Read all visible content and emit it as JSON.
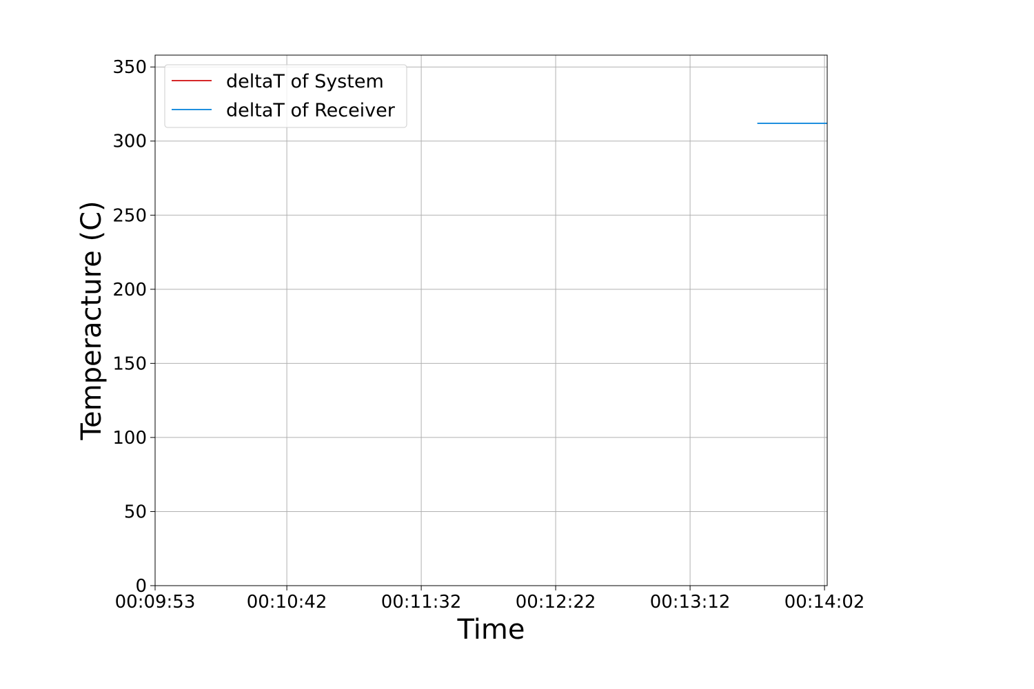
{
  "chart_data": {
    "type": "line",
    "title": "",
    "xlabel": "Time",
    "ylabel": "Temperacture (C)",
    "x_ticks": [
      "00:09:53",
      "00:10:42",
      "00:11:32",
      "00:12:22",
      "00:13:12",
      "00:14:02"
    ],
    "x_tick_seconds": [
      593,
      642,
      692,
      742,
      792,
      842
    ],
    "xlim_seconds": [
      593,
      843
    ],
    "ylim": [
      0,
      358
    ],
    "y_ticks": [
      0,
      50,
      100,
      150,
      200,
      250,
      300,
      350
    ],
    "grid": true,
    "legend_position": "upper-left",
    "series": [
      {
        "name": "deltaT of System",
        "color": "#d62728",
        "x_seconds": [],
        "values": []
      },
      {
        "name": "deltaT of Receiver",
        "color": "#1f8fdf",
        "x_seconds": [
          817,
          843
        ],
        "values": [
          312,
          312
        ]
      }
    ]
  }
}
